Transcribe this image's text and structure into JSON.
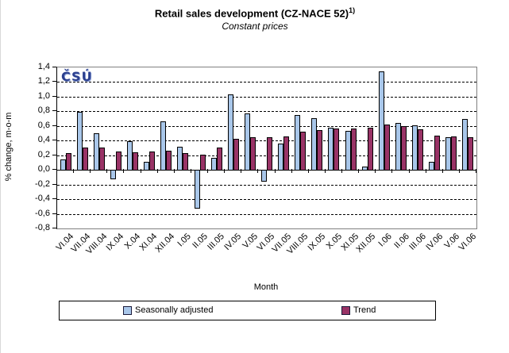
{
  "logo": {
    "text": "ČSÚ"
  },
  "chart_data": {
    "type": "bar",
    "title": "Retail sales development (CZ-NACE 52)",
    "footnote_marker": "1)",
    "subtitle": "Constant prices",
    "xlabel": "Month",
    "ylabel": "% change, m-o-m",
    "ylim": [
      -0.8,
      1.4
    ],
    "ytick_step": 0.2,
    "decimal_separator": ",",
    "grid": "horizontal-dashed",
    "legend_position": "bottom",
    "categories": [
      "VI.04",
      "VII.04",
      "VIII.04",
      "IX.04",
      "X.04",
      "XI.04",
      "XII.04",
      "I.05",
      "II.05",
      "III.05",
      "IV.05",
      "V.05",
      "VI.05",
      "VII.05",
      "VIII.05",
      "IX.05",
      "X.05",
      "XI.05",
      "XII.05",
      "I.06",
      "II.06",
      "III.06",
      "IV.06",
      "V.06",
      "VI.06"
    ],
    "series": [
      {
        "name": "Seasonally adjusted",
        "color": "#a9c7ea",
        "values": [
          0.15,
          0.8,
          0.51,
          -0.13,
          0.4,
          0.12,
          0.67,
          0.32,
          -0.53,
          0.17,
          1.04,
          0.78,
          -0.16,
          0.37,
          0.76,
          0.71,
          0.59,
          0.54,
          0.05,
          1.36,
          0.65,
          0.62,
          0.12,
          0.45,
          0.7
        ]
      },
      {
        "name": "Trend",
        "color": "#993366",
        "values": [
          0.24,
          0.31,
          0.31,
          0.26,
          0.25,
          0.26,
          0.27,
          0.24,
          0.22,
          0.31,
          0.43,
          0.46,
          0.45,
          0.47,
          0.53,
          0.55,
          0.57,
          0.57,
          0.59,
          0.63,
          0.61,
          0.56,
          0.48,
          0.47,
          0.46
        ]
      }
    ],
    "colors": {
      "grid": "#000000",
      "plot_border": "#808080",
      "axis": "#000000",
      "logo": "#2b3f8e"
    }
  }
}
